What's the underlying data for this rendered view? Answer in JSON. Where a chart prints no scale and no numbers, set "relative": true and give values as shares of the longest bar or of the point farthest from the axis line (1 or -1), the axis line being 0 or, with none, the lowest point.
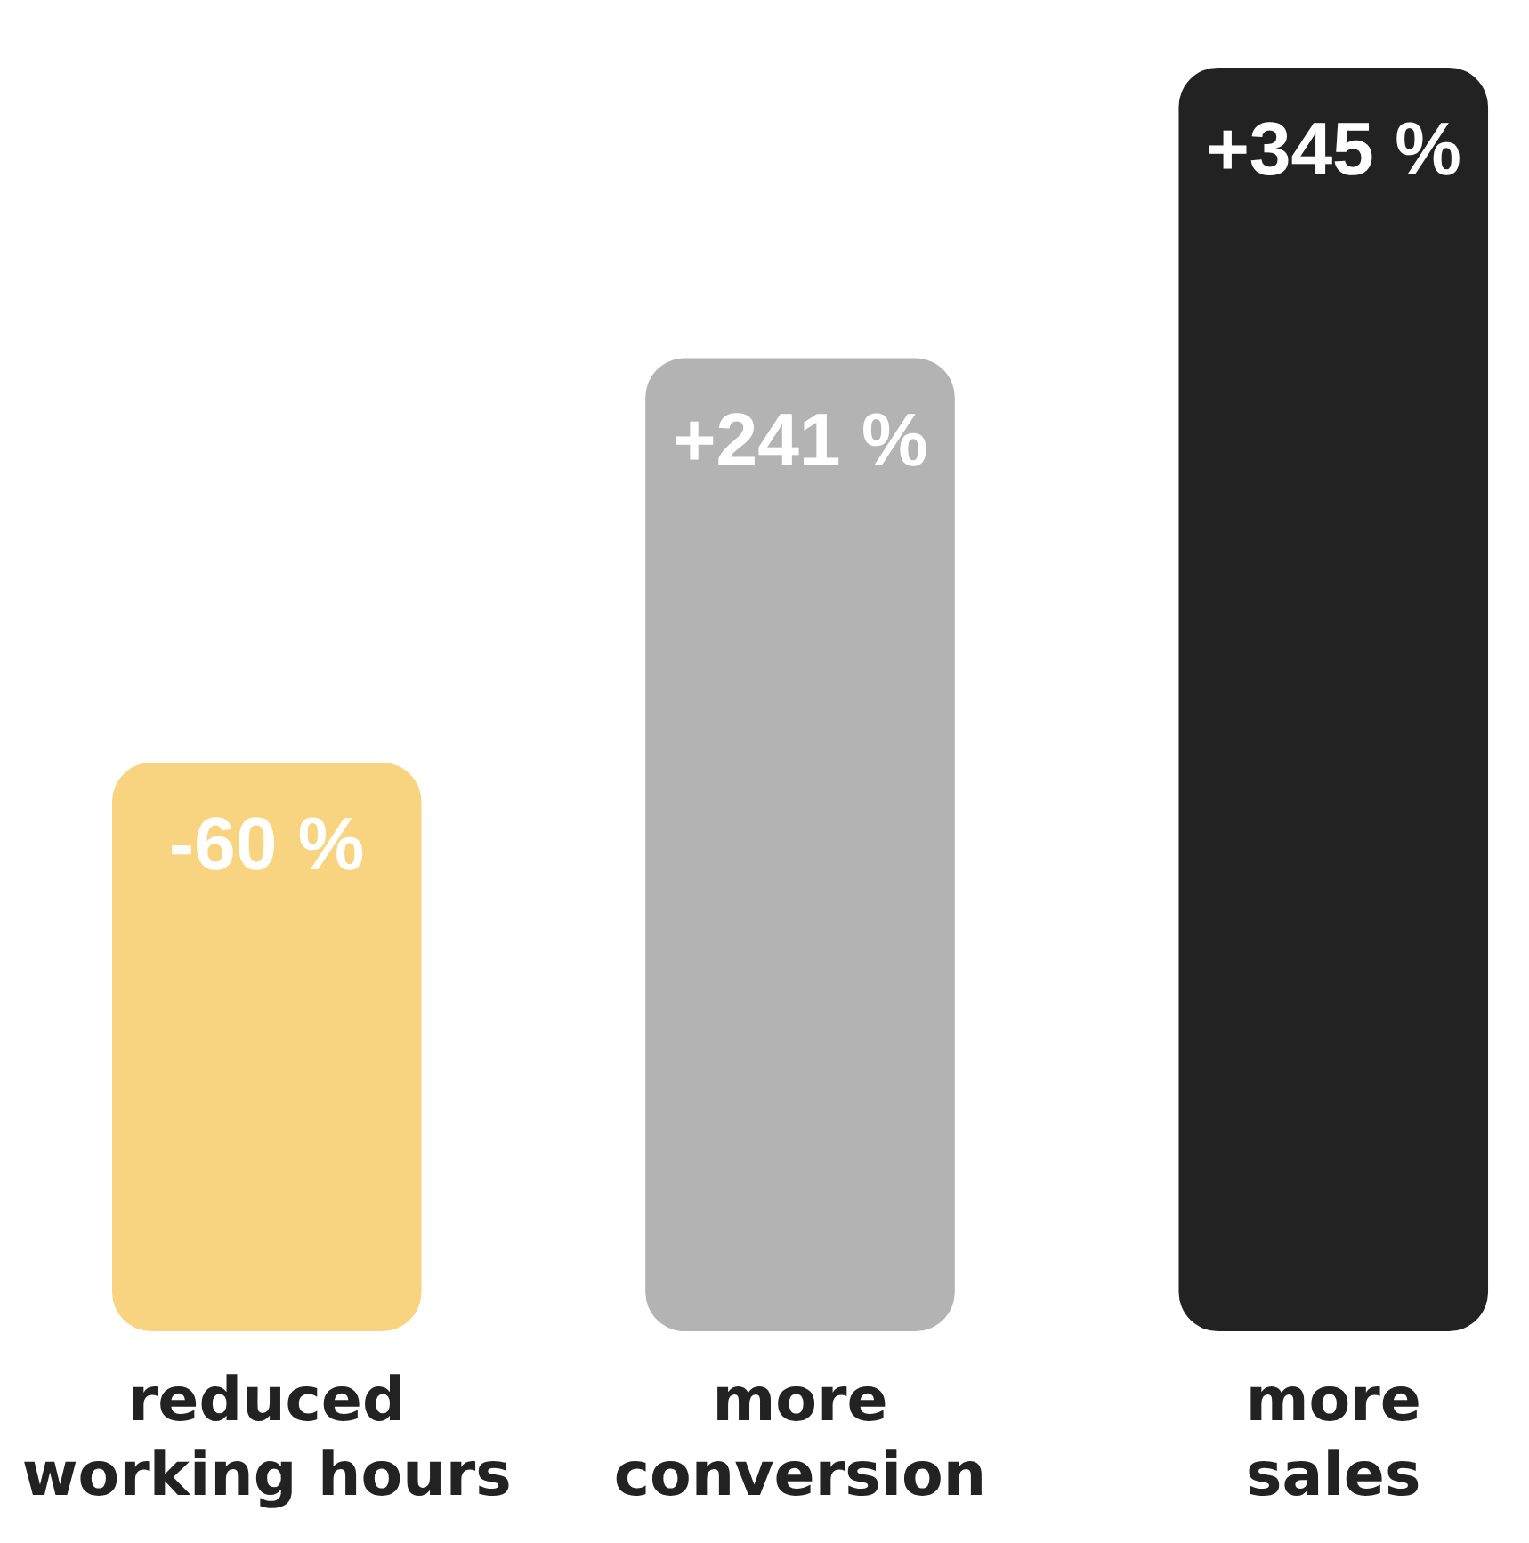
{
  "chart_data": {
    "type": "bar",
    "relative": true,
    "categories": [
      "reduced working hours",
      "more conversion",
      "more sales"
    ],
    "values": [
      0.45,
      0.77,
      1
    ],
    "colors": [
      "#f9d480",
      "#b3b3b3",
      "#222222"
    ],
    "annotations": [
      "-60 %",
      "+241 %",
      "+345 %"
    ]
  }
}
